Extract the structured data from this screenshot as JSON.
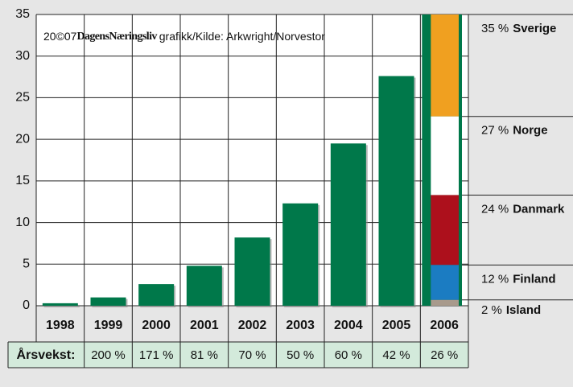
{
  "chart_data": {
    "type": "bar",
    "categories": [
      "1998",
      "1999",
      "2000",
      "2001",
      "2002",
      "2003",
      "2004",
      "2005",
      "2006"
    ],
    "values": [
      0.3,
      1.0,
      2.6,
      4.8,
      8.2,
      12.3,
      19.5,
      27.6,
      null
    ],
    "color": "#00784a",
    "ylim": [
      0,
      35
    ],
    "yticks": [
      0,
      5,
      10,
      15,
      20,
      25,
      30,
      35
    ],
    "grid": true,
    "source": {
      "year": "20©07",
      "brand": "DagensNæringsliv",
      "text": "grafikk/Kilde: Arkwright/Norvestor"
    },
    "breakdown": {
      "category": "2006",
      "names": [
        "Sverige",
        "Norge",
        "Danmark",
        "Finland",
        "Island"
      ],
      "values": [
        35,
        27,
        24,
        12,
        2
      ],
      "value_labels": [
        "35 %",
        "27 %",
        "24 %",
        "12 %",
        "2 %"
      ],
      "colors": [
        "#f0a020",
        "#ffffff",
        "#ad101c",
        "#1b7cc2",
        "#a89a8c"
      ]
    },
    "growth": {
      "label": "Årsvekst:",
      "values": [
        200,
        171,
        81,
        70,
        50,
        60,
        42,
        26
      ],
      "value_labels": [
        "200 %",
        "171 %",
        "81 %",
        "70 %",
        "50 %",
        "60 %",
        "42 %",
        "26 %"
      ]
    }
  }
}
